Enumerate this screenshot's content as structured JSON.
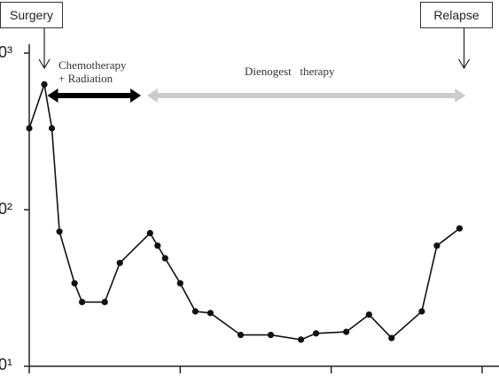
{
  "chart_data": {
    "type": "line",
    "yscale": "log",
    "ylim_log10": [
      1,
      3
    ],
    "ytick_labels": [
      "0³",
      "0²",
      "0¹"
    ],
    "xlim": [
      0,
      30
    ],
    "x_ticks": [
      0,
      10,
      20,
      30
    ],
    "x_tick_labels": [],
    "series": [
      {
        "points": [
          [
            0,
            2.52
          ],
          [
            1,
            2.8
          ],
          [
            1.5,
            2.52
          ],
          [
            2,
            1.86
          ],
          [
            3,
            1.53
          ],
          [
            3.5,
            1.41
          ],
          [
            5,
            1.41
          ],
          [
            6,
            1.66
          ],
          [
            8,
            1.85
          ],
          [
            8.5,
            1.77
          ],
          [
            9,
            1.69
          ],
          [
            10,
            1.53
          ],
          [
            11,
            1.35
          ],
          [
            12,
            1.34
          ],
          [
            14,
            1.2
          ],
          [
            16,
            1.2
          ],
          [
            18,
            1.17
          ],
          [
            19,
            1.21
          ],
          [
            21,
            1.22
          ],
          [
            22.5,
            1.33
          ],
          [
            24,
            1.18
          ],
          [
            26,
            1.35
          ],
          [
            27,
            1.77
          ],
          [
            28.5,
            1.88
          ]
        ]
      }
    ],
    "annotations": {
      "surgery_label": "Surgery",
      "relapse_label": "Relapse",
      "chemo_line1": "Chemotherapy",
      "chemo_line2": "+ Radiation",
      "dienogest_label": "Dienogest   therapy"
    },
    "colors": {
      "line": "#111111",
      "chemo_arrow": "#000000",
      "dienogest_arrow": "#cccccc"
    }
  }
}
